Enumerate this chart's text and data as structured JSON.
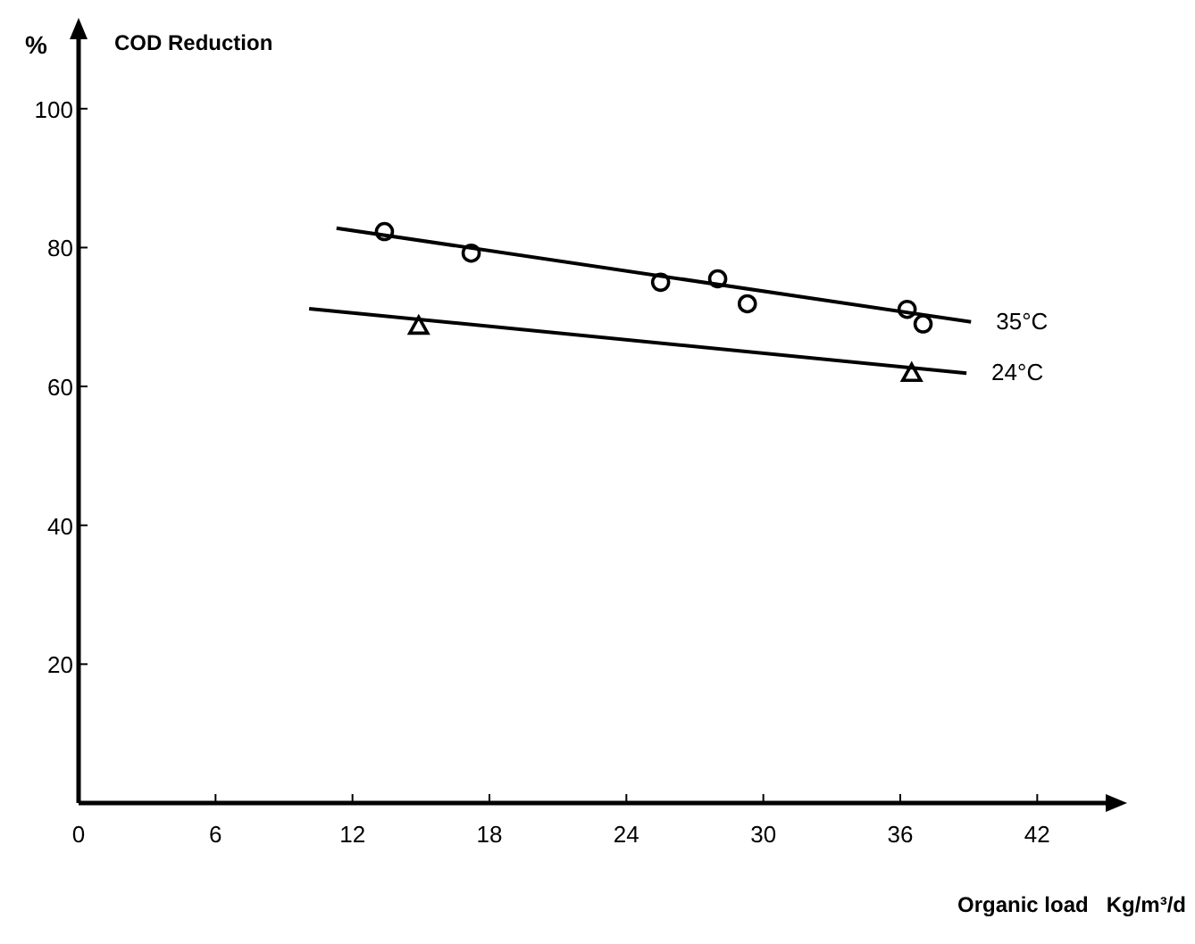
{
  "chart_data": {
    "type": "scatter",
    "ylabel": "COD Reduction",
    "xlabel": "Organic load   Kg/m³/d",
    "annotations": [
      "%"
    ],
    "xlim": [
      0,
      45
    ],
    "ylim": [
      0,
      110
    ],
    "xticks": [
      0,
      6,
      12,
      18,
      24,
      30,
      36,
      42
    ],
    "yticks": [
      20,
      40,
      60,
      80,
      100
    ],
    "grid": false,
    "series": [
      {
        "marker": "circle",
        "color": "#000000",
        "x": [
          13.4,
          17.2,
          25.5,
          28.0,
          29.3,
          36.3,
          37.0
        ],
        "values": [
          82.3,
          79.2,
          75.0,
          75.5,
          71.9,
          71.1,
          69.0
        ]
      },
      {
        "marker": "triangle",
        "color": "#000000",
        "x": [
          14.9,
          36.5
        ],
        "values": [
          68.7,
          61.9
        ]
      },
      {
        "type": "line",
        "name": "35°C",
        "marker": "none",
        "line_style": "solid",
        "color": "#000000",
        "x": [
          11.3,
          39.1
        ],
        "values": [
          82.8,
          69.3
        ]
      },
      {
        "type": "line",
        "name": "24°C",
        "marker": "none",
        "line_style": "solid",
        "color": "#000000",
        "x": [
          10.1,
          38.9
        ],
        "values": [
          71.2,
          61.9
        ]
      }
    ]
  }
}
